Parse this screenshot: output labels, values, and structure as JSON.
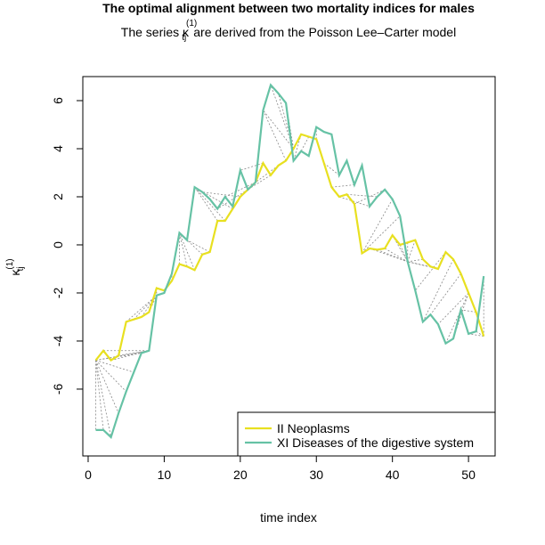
{
  "chart_data": {
    "type": "line",
    "title": "The optimal alignment between two mortality indices for males",
    "subtitle": {
      "before": "The series",
      "symbol": "κ",
      "sub": "tj",
      "sup": "(1)",
      "after": "are derived from the Poisson Lee–Carter model"
    },
    "xlabel": "time index",
    "ylabel": {
      "symbol": "κ",
      "sub": "tj",
      "sup": "(1)"
    },
    "x": [
      1,
      2,
      3,
      4,
      5,
      6,
      7,
      8,
      9,
      10,
      11,
      12,
      13,
      14,
      15,
      16,
      17,
      18,
      19,
      20,
      21,
      22,
      23,
      24,
      25,
      26,
      27,
      28,
      29,
      30,
      31,
      32,
      33,
      34,
      35,
      36,
      37,
      38,
      39,
      40,
      41,
      42,
      43,
      44,
      45,
      46,
      47,
      48,
      49,
      50,
      51,
      52
    ],
    "series": [
      {
        "name": "II Neoplasms",
        "color": "#e8e020",
        "values": [
          -4.8,
          -4.4,
          -4.8,
          -4.6,
          -3.2,
          -3.1,
          -3.0,
          -2.8,
          -1.8,
          -1.9,
          -1.5,
          -0.8,
          -0.9,
          -1.05,
          -0.4,
          -0.3,
          1.0,
          1.0,
          1.5,
          2.0,
          2.3,
          2.6,
          3.4,
          2.9,
          3.3,
          3.5,
          4.0,
          4.6,
          4.5,
          4.4,
          3.4,
          2.4,
          2.0,
          2.1,
          1.7,
          -0.35,
          -0.15,
          -0.2,
          -0.15,
          0.4,
          0.0,
          0.1,
          0.2,
          -0.6,
          -0.9,
          -1.0,
          -0.3,
          -0.6,
          -1.2,
          -2.0,
          -2.8,
          -3.8
        ]
      },
      {
        "name": "XI Diseases of the digestive system",
        "color": "#66c2a5",
        "values": [
          -7.7,
          -7.7,
          -8.0,
          -7.0,
          -6.1,
          -5.3,
          -4.5,
          -4.4,
          -2.1,
          -2.0,
          -1.2,
          0.5,
          0.2,
          2.4,
          2.2,
          1.9,
          1.5,
          2.0,
          1.6,
          3.1,
          2.3,
          2.6,
          5.6,
          6.65,
          6.3,
          5.9,
          3.5,
          3.9,
          3.7,
          4.9,
          4.7,
          4.6,
          2.9,
          3.5,
          2.5,
          3.3,
          1.6,
          2.0,
          2.3,
          1.9,
          1.2,
          -0.7,
          -1.9,
          -3.2,
          -2.9,
          -3.3,
          -4.1,
          -3.9,
          -2.7,
          -3.7,
          -3.6,
          -1.3
        ]
      }
    ],
    "alignment": [
      [
        0,
        0
      ],
      [
        0,
        1
      ],
      [
        0,
        2
      ],
      [
        0,
        3
      ],
      [
        0,
        4
      ],
      [
        0,
        5
      ],
      [
        0,
        6
      ],
      [
        0,
        7
      ],
      [
        1,
        7
      ],
      [
        2,
        7
      ],
      [
        3,
        7
      ],
      [
        4,
        8
      ],
      [
        5,
        8
      ],
      [
        6,
        8
      ],
      [
        7,
        8
      ],
      [
        8,
        8
      ],
      [
        9,
        9
      ],
      [
        10,
        10
      ],
      [
        11,
        11
      ],
      [
        12,
        11
      ],
      [
        13,
        11
      ],
      [
        14,
        12
      ],
      [
        15,
        12
      ],
      [
        16,
        13
      ],
      [
        17,
        13
      ],
      [
        18,
        13
      ],
      [
        19,
        14
      ],
      [
        20,
        16
      ],
      [
        21,
        17
      ],
      [
        22,
        19
      ],
      [
        23,
        20
      ],
      [
        24,
        21
      ],
      [
        25,
        22
      ],
      [
        26,
        22
      ],
      [
        26,
        23
      ],
      [
        26,
        24
      ],
      [
        26,
        25
      ],
      [
        27,
        26
      ],
      [
        28,
        27
      ],
      [
        29,
        29
      ],
      [
        30,
        32
      ],
      [
        31,
        34
      ],
      [
        32,
        36
      ],
      [
        33,
        37
      ],
      [
        34,
        38
      ],
      [
        35,
        39
      ],
      [
        35,
        40
      ],
      [
        36,
        41
      ],
      [
        37,
        41
      ],
      [
        38,
        41
      ],
      [
        39,
        41
      ],
      [
        40,
        41
      ],
      [
        41,
        41
      ],
      [
        42,
        41
      ],
      [
        43,
        41
      ],
      [
        44,
        41
      ],
      [
        45,
        41
      ],
      [
        46,
        42
      ],
      [
        47,
        43
      ],
      [
        48,
        44
      ],
      [
        49,
        45
      ],
      [
        49,
        46
      ],
      [
        49,
        47
      ],
      [
        50,
        48
      ],
      [
        51,
        49
      ],
      [
        51,
        50
      ],
      [
        51,
        51
      ]
    ],
    "xlim": [
      -0.7,
      53.5
    ],
    "ylim": [
      -8.78,
      7.0
    ],
    "xticks": [
      0,
      10,
      20,
      30,
      40,
      50
    ],
    "yticks": [
      -6,
      -4,
      -2,
      0,
      2,
      4,
      6
    ],
    "legend": "bottom-right"
  }
}
